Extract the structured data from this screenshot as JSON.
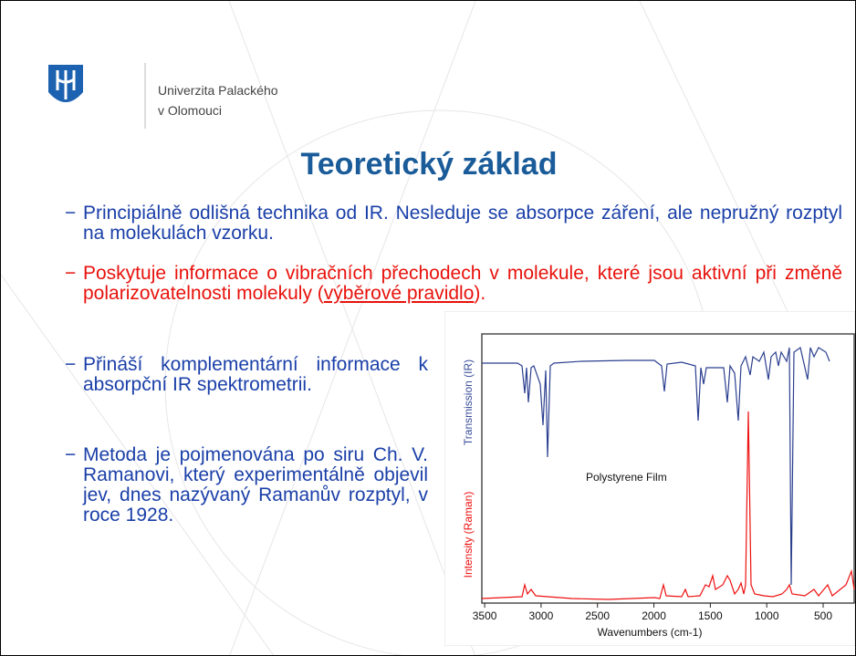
{
  "header": {
    "university": [
      "Univerzita Palackého",
      "v Olomouci"
    ]
  },
  "title": "Teoretický základ",
  "marker": "−",
  "bullets": [
    {
      "text": "Principiálně odlišná technika od IR. Nesleduje se absorpce záření, ale nepružný rozptyl na molekulách vzorku."
    },
    {
      "text": "Poskytuje informace o vibračních přechodech v molekule, které jsou aktivní při změně polarizovatelnosti molekuly (",
      "link": "výběrové pravidlo",
      "after": ")."
    },
    {
      "text": "Přináší komplementární informace k absorpční IR spektrometrii."
    },
    {
      "text": "Metoda je pojmenována po siru Ch. V. Ramanovi, který experimentálně objevil jev, dnes nazývaný Ramanův rozptyl, v roce 1928."
    }
  ],
  "figure": {
    "annotation": "Polystyrene Film",
    "xlabel": "Wavenumbers (cm-1)",
    "ylabel_top": "Transmission (IR)",
    "ylabel_bottom": "Intensity (Raman)",
    "xlim": [
      3525,
      225
    ],
    "xticks": [
      3500,
      3000,
      2500,
      2000,
      1500,
      1000,
      500
    ]
  }
}
